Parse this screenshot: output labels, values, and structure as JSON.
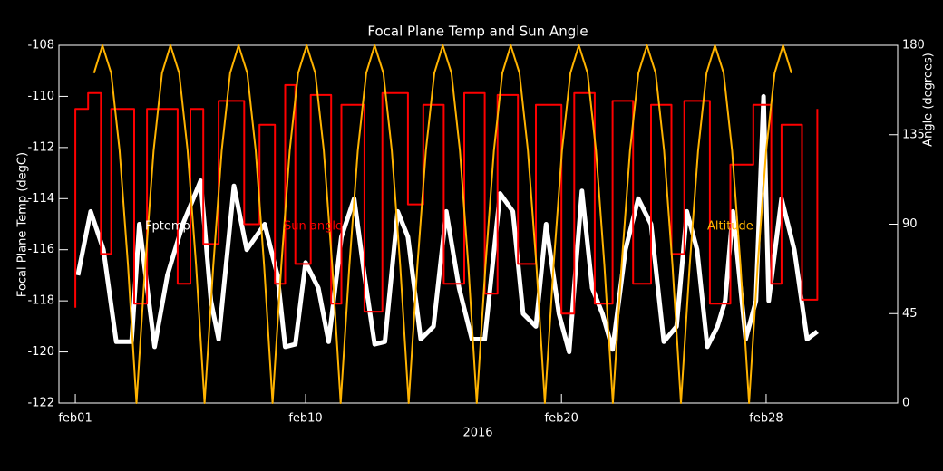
{
  "chart_data": {
    "type": "line",
    "title": "Focal Plane Temp and Sun Angle",
    "xlabel": "2016",
    "ylabel": "Focal Plane Temp (degC)",
    "y2label": "Angle (degrees)",
    "xlim": [
      31.36,
      64.14
    ],
    "xticks": [
      {
        "value": 32,
        "label": "feb01"
      },
      {
        "value": 41,
        "label": "feb10"
      },
      {
        "value": 51,
        "label": "feb20"
      },
      {
        "value": 59,
        "label": "feb28"
      }
    ],
    "ylim": [
      -122,
      -108
    ],
    "yticks": [
      -122,
      -120,
      -118,
      -116,
      -114,
      -112,
      -110,
      -108
    ],
    "y2lim": [
      0,
      180
    ],
    "y2ticks": [
      0,
      45,
      90,
      135,
      180
    ],
    "series": [
      {
        "name": "Fptemp",
        "color": "#ffffff",
        "axis": "y",
        "x": [
          32.1,
          32.6,
          33.1,
          33.6,
          34.2,
          34.5,
          35.1,
          35.6,
          36.2,
          36.9,
          37.3,
          37.6,
          38.2,
          38.7,
          39.4,
          39.9,
          40.2,
          40.6,
          41.0,
          41.5,
          41.9,
          42.4,
          42.9,
          43.3,
          43.7,
          44.1,
          44.6,
          45.0,
          45.5,
          46.0,
          46.5,
          47.0,
          47.5,
          48.0,
          48.6,
          49.1,
          49.5,
          50.0,
          50.4,
          50.9,
          51.3,
          51.8,
          52.2,
          52.6,
          53.0,
          53.5,
          54.0,
          54.5,
          55.0,
          55.5,
          55.9,
          56.3,
          56.7,
          57.1,
          57.4,
          57.7,
          58.2,
          58.6,
          58.9,
          59.1,
          59.6,
          60.1,
          60.6,
          61.0
        ],
        "values": [
          -117,
          -114.5,
          -116,
          -119.6,
          -119.6,
          -115,
          -119.8,
          -117,
          -115,
          -113.3,
          -118,
          -119.5,
          -113.5,
          -116,
          -115,
          -117,
          -119.8,
          -119.7,
          -116.5,
          -117.5,
          -119.6,
          -115.5,
          -114,
          -117,
          -119.7,
          -119.6,
          -114.5,
          -115.5,
          -119.5,
          -119,
          -114.5,
          -117.5,
          -119.5,
          -119.5,
          -113.8,
          -114.5,
          -118.5,
          -119,
          -115,
          -118.5,
          -120,
          -113.7,
          -117.5,
          -118.5,
          -119.9,
          -116,
          -114,
          -115,
          -119.6,
          -119,
          -114.5,
          -116,
          -119.8,
          -119,
          -118,
          -114.5,
          -119.5,
          -118,
          -110,
          -118,
          -114,
          -116,
          -119.5,
          -119.2
        ]
      },
      {
        "name": "Sun angle",
        "color": "#ff0000",
        "axis": "y2",
        "x": [
          32.0,
          32.0,
          32.5,
          32.5,
          33.0,
          33.0,
          33.4,
          33.4,
          34.3,
          34.3,
          34.8,
          34.8,
          36.0,
          36.0,
          36.5,
          36.5,
          37.0,
          37.0,
          37.6,
          37.6,
          38.6,
          38.6,
          39.2,
          39.2,
          39.8,
          39.8,
          40.2,
          40.2,
          40.6,
          40.6,
          41.2,
          41.2,
          42.0,
          42.0,
          42.4,
          42.4,
          43.3,
          43.3,
          44.0,
          44.0,
          45.0,
          45.0,
          45.6,
          45.6,
          46.4,
          46.4,
          47.2,
          47.2,
          48.0,
          48.0,
          48.5,
          48.5,
          49.3,
          49.3,
          50.0,
          50.0,
          51.0,
          51.0,
          51.5,
          51.5,
          52.3,
          52.3,
          53.0,
          53.0,
          53.8,
          53.8,
          54.5,
          54.5,
          55.3,
          55.3,
          55.8,
          55.8,
          56.8,
          56.8,
          57.6,
          57.6,
          58.5,
          58.5,
          59.2,
          59.2,
          59.6,
          59.6,
          60.4,
          60.4,
          61.0,
          61.0
        ],
        "values": [
          48,
          148,
          148,
          156,
          156,
          75,
          75,
          148,
          148,
          50,
          50,
          148,
          148,
          60,
          60,
          148,
          148,
          80,
          80,
          152,
          152,
          90,
          90,
          140,
          140,
          60,
          60,
          160,
          160,
          70,
          70,
          155,
          155,
          50,
          50,
          150,
          150,
          46,
          46,
          156,
          156,
          100,
          100,
          150,
          150,
          60,
          60,
          156,
          156,
          55,
          55,
          155,
          155,
          70,
          70,
          150,
          150,
          45,
          45,
          156,
          156,
          50,
          50,
          152,
          152,
          60,
          60,
          150,
          150,
          75,
          75,
          152,
          152,
          50,
          50,
          120,
          120,
          150,
          150,
          60,
          60,
          140,
          140,
          52,
          52,
          148
        ]
      },
      {
        "name": "Altitude",
        "color": "#ffb300",
        "axis": "y2",
        "x": [
          32.73,
          33.06,
          33.4,
          33.73,
          34.06,
          34.39,
          34.73,
          35.06,
          35.39,
          35.72,
          36.06,
          36.39,
          36.72,
          37.05,
          37.39,
          37.72,
          38.05,
          38.38,
          38.72,
          39.05,
          39.38,
          39.71,
          40.05,
          40.38,
          40.71,
          41.04,
          41.38,
          41.71,
          42.04,
          42.37,
          42.71,
          43.04,
          43.37,
          43.7,
          44.04,
          44.37,
          44.7,
          45.03,
          45.37,
          45.7,
          46.03,
          46.36,
          46.7,
          47.03,
          47.36,
          47.69,
          48.03,
          48.36,
          48.69,
          49.02,
          49.36,
          49.69,
          50.02,
          50.35,
          50.69,
          51.02,
          51.35,
          51.68,
          52.02,
          52.35,
          52.68,
          53.01,
          53.35,
          53.68,
          54.01,
          54.34,
          54.68,
          55.01,
          55.34,
          55.67,
          56.01,
          56.34,
          56.67,
          57.0,
          57.34,
          57.67,
          58.0,
          58.33,
          58.67,
          59.0,
          59.33,
          59.66,
          59.99
        ],
        "values": [
          166,
          180,
          166,
          127,
          69,
          0,
          69,
          127,
          166,
          180,
          166,
          127,
          69,
          0,
          69,
          127,
          166,
          180,
          166,
          127,
          69,
          0,
          69,
          127,
          166,
          180,
          166,
          127,
          69,
          0,
          69,
          127,
          166,
          180,
          166,
          127,
          69,
          0,
          69,
          127,
          166,
          180,
          166,
          127,
          69,
          0,
          69,
          127,
          166,
          180,
          166,
          127,
          69,
          0,
          69,
          127,
          166,
          180,
          166,
          127,
          69,
          0,
          69,
          127,
          166,
          180,
          166,
          127,
          69,
          0,
          69,
          127,
          166,
          180,
          166,
          127,
          69,
          0,
          69,
          127,
          166,
          180,
          166
        ]
      }
    ]
  }
}
